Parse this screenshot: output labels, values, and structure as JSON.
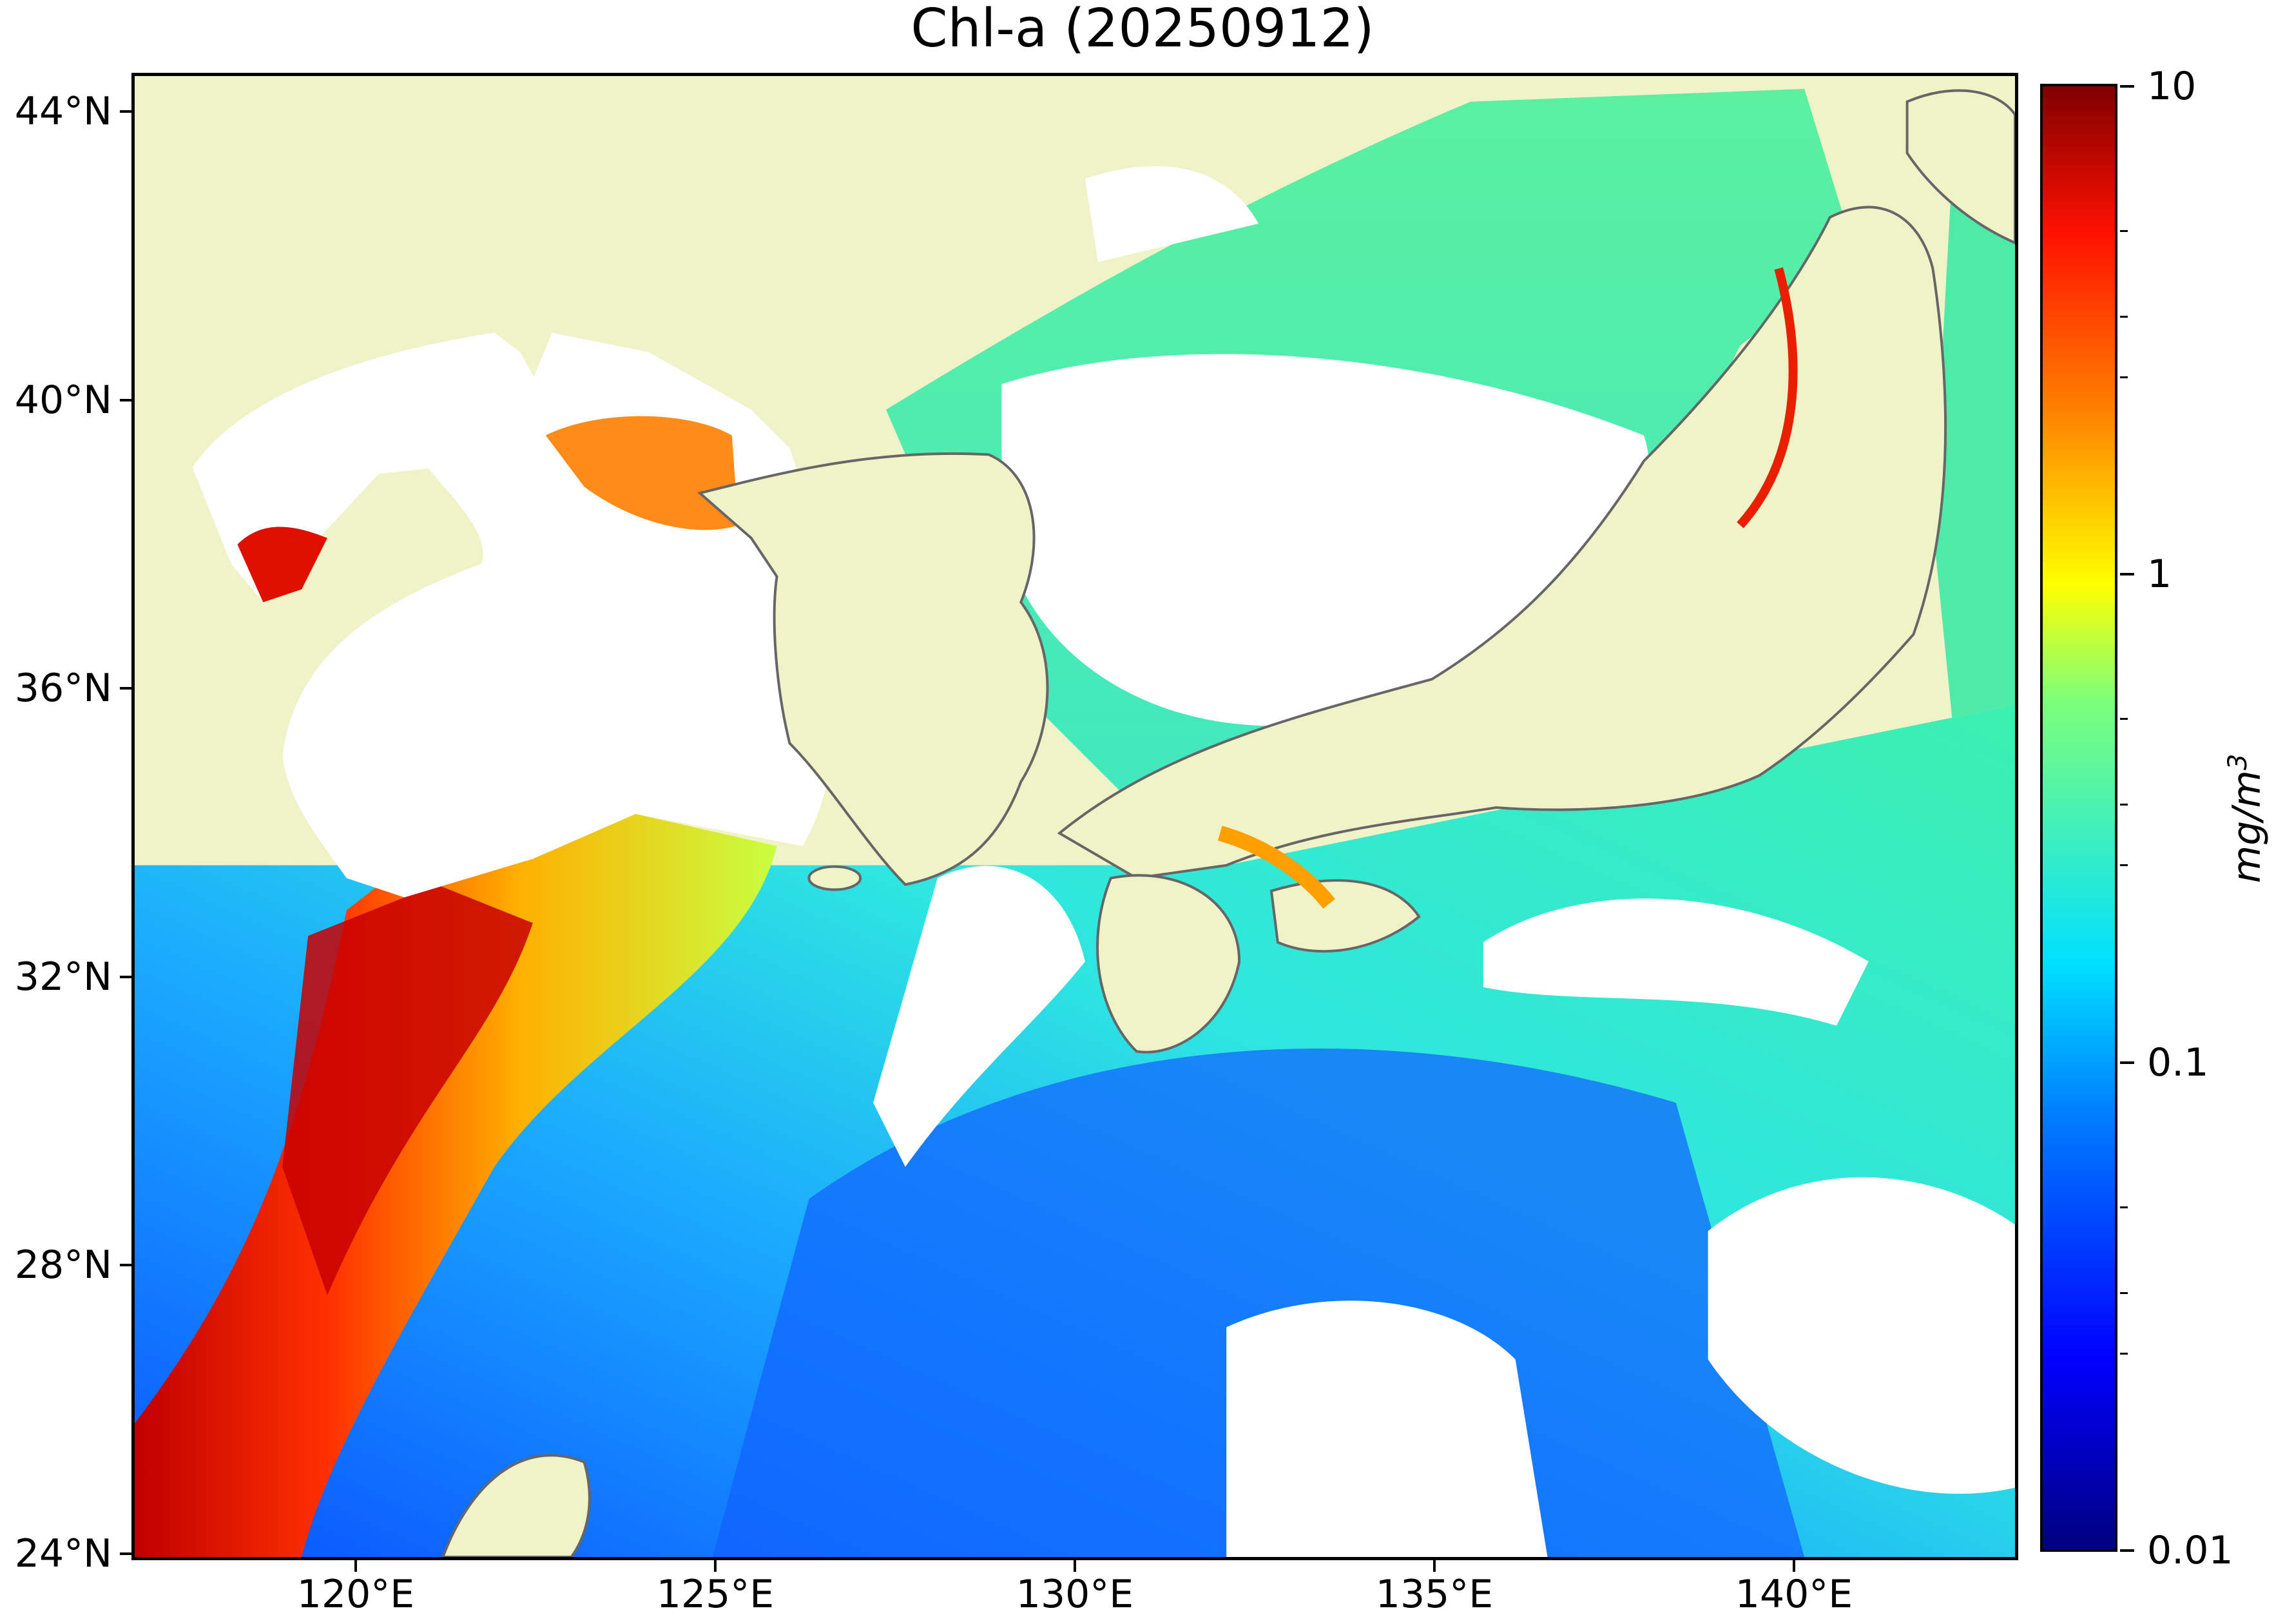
{
  "title": "Chl-a (20250912)",
  "colors": {
    "land": "#f0f2c8",
    "no_data": "#ffffff",
    "coastline": "#666666"
  },
  "axes": {
    "lat_labels": [
      "44°N",
      "40°N",
      "36°N",
      "32°N",
      "28°N",
      "24°N"
    ],
    "lon_labels": [
      "120°E",
      "125°E",
      "130°E",
      "135°E",
      "140°E"
    ]
  },
  "colorbar": {
    "colormap": "jet",
    "scale": "log",
    "range": [
      0.01,
      10
    ],
    "labels": [
      "10",
      "1",
      "0.1",
      "0.01"
    ],
    "unit": "mg/m3"
  }
}
